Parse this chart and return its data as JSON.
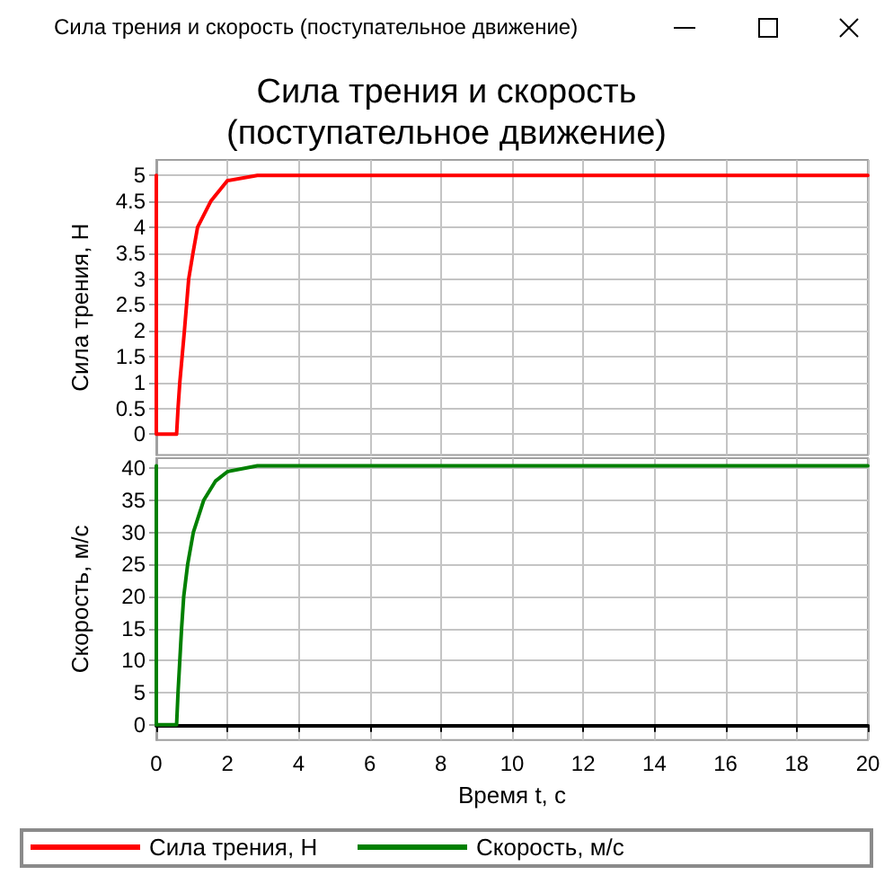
{
  "chart_data": [
    {
      "type": "line",
      "title": "Сила трения и скорость\n(поступательное движение)",
      "annotations": [
        "Сила трения и скорость (поступательное движение)"
      ],
      "ylabel": "Сила трения, Н",
      "series": [
        {
          "name": "Сила трения, Н",
          "color": "#ff0000",
          "x": [
            0,
            0,
            0.57,
            0.61,
            0.66,
            0.79,
            0.91,
            1.03,
            1.16,
            1.53,
            2.0,
            2.84,
            20
          ],
          "values": [
            5,
            0,
            0,
            0.5,
            1,
            2,
            3,
            3.5,
            4,
            4.5,
            4.9,
            5,
            5
          ]
        }
      ],
      "xlim": [
        0,
        20
      ],
      "xticks": [
        0,
        2,
        4,
        6,
        8,
        10,
        12,
        14,
        16,
        18,
        20
      ],
      "ylim": [
        -0.4,
        5.3
      ],
      "yticks": [
        0,
        0.5,
        1,
        1.5,
        2,
        2.5,
        3,
        3.5,
        4,
        4.5,
        5
      ],
      "tick_labels": "y",
      "grid": true,
      "legend": "bottom"
    },
    {
      "type": "line",
      "xlabel": "Время t, с",
      "ylabel": "Скорость, м/с",
      "series": [
        {
          "name": "Скорость, м/с",
          "color": "#008000",
          "x": [
            0,
            0,
            0.57,
            0.61,
            0.66,
            0.71,
            0.77,
            0.88,
            1.04,
            1.33,
            1.66,
            2.0,
            2.84,
            20
          ],
          "values": [
            40.4,
            0,
            0,
            5,
            10,
            15,
            20,
            25,
            30,
            35,
            38,
            39.5,
            40.4,
            40.4
          ]
        }
      ],
      "xlim": [
        0,
        20
      ],
      "xticks": [
        0,
        2,
        4,
        6,
        8,
        10,
        12,
        14,
        16,
        18,
        20
      ],
      "ylim": [
        -2.4,
        41.6
      ],
      "yticks": [
        0,
        5,
        10,
        15,
        20,
        25,
        30,
        35,
        40
      ],
      "grid": true,
      "legend": "bottom"
    }
  ]
}
